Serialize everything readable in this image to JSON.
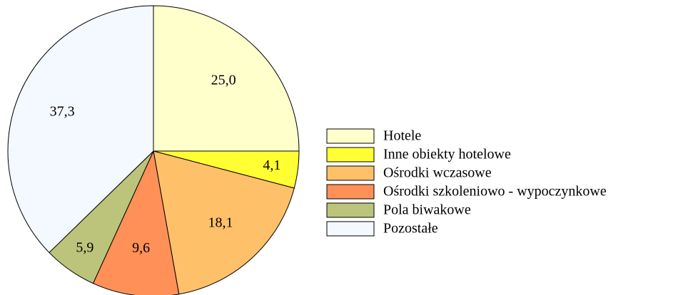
{
  "chart_data": {
    "type": "pie",
    "categories": [
      "Hotele",
      "Inne obiekty hotelowe",
      "Ośrodki wczasowe",
      "Ośrodki szkoleniowo - wypoczynkowe",
      "Pola biwakowe",
      "Pozostałe"
    ],
    "values": [
      25.0,
      4.1,
      18.1,
      9.6,
      5.9,
      37.3
    ],
    "value_labels": [
      "25,0",
      "4,1",
      "18,1",
      "9,6",
      "5,9",
      "37,3"
    ],
    "colors": [
      "#ffffcc",
      "#ffff33",
      "#ffc06a",
      "#ff9058",
      "#bcc47c",
      "#f4f8ff"
    ],
    "legend": "right"
  }
}
